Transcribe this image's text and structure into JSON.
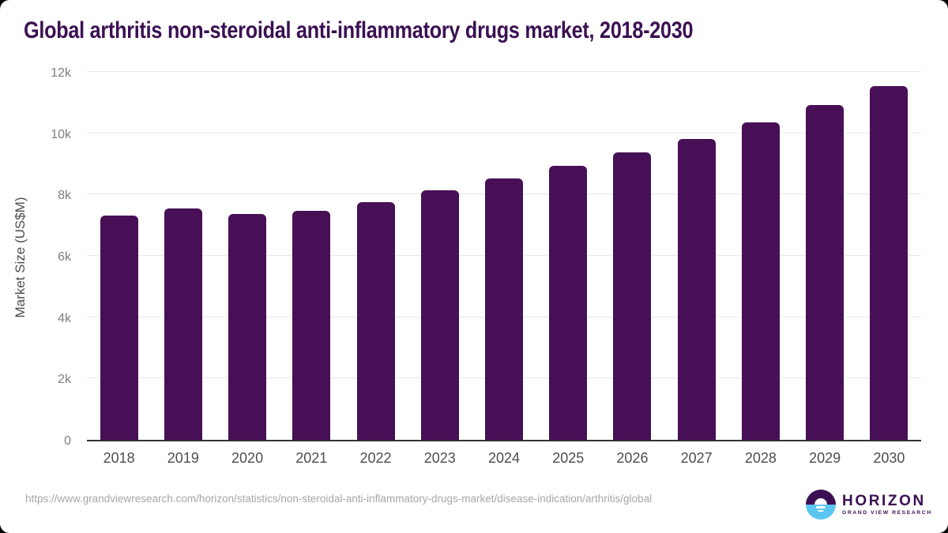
{
  "title": "Global arthritis non-steroidal anti-inflammatory drugs market, 2018-2030",
  "chart_data": {
    "type": "bar",
    "title": "Global arthritis non-steroidal anti-inflammatory drugs market, 2018-2030",
    "categories": [
      "2018",
      "2019",
      "2020",
      "2021",
      "2022",
      "2023",
      "2024",
      "2025",
      "2026",
      "2027",
      "2028",
      "2029",
      "2030"
    ],
    "values": [
      7310,
      7550,
      7370,
      7470,
      7760,
      8140,
      8520,
      8940,
      9380,
      9820,
      10350,
      10920,
      11540
    ],
    "xlabel": "",
    "ylabel": "Market Size (US$M)",
    "ylim": [
      0,
      12000
    ],
    "ytick_labels": [
      "0",
      "2k",
      "4k",
      "6k",
      "8k",
      "10k",
      "12k"
    ],
    "ytick_values": [
      0,
      2000,
      4000,
      6000,
      8000,
      10000,
      12000
    ],
    "grid": true,
    "legend": "none",
    "bar_color": "#471056"
  },
  "footer": {
    "source_url": "https://www.grandviewresearch.com/horizon/statistics/non-steroidal-anti-inflammatory-drugs-market/disease-indication/arthritis/global",
    "logo": {
      "brand": "HORIZON",
      "sub_brand": "GRAND VIEW RESEARCH"
    }
  },
  "colors": {
    "title": "#3b1053",
    "bar": "#471056",
    "gridline": "#e8e8e8",
    "axis_line": "#333333",
    "tick_text": "#7d7d7d",
    "axis_label_text": "#4d4d4d",
    "url_text": "#a6a6a6",
    "logo_purple": "#3b1053",
    "logo_blue": "#5bc6f2",
    "background": "#ffffff"
  }
}
